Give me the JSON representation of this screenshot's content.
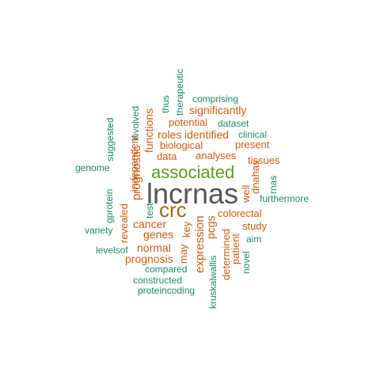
{
  "colors": {
    "gray": "#555555",
    "brown": "#9a6a1c",
    "green": "#5c9a1f",
    "orange": "#d35a12",
    "teal": "#1b8a6b"
  },
  "words": [
    "lncrnas",
    "crc",
    "associated",
    "prognostic",
    "expression",
    "pcgs",
    "cancer",
    "genes",
    "prognosis",
    "normal",
    "functions",
    "roles",
    "identified",
    "potential",
    "significantly",
    "data",
    "biological",
    "analyses",
    "present",
    "tissues",
    "well",
    "colorectal",
    "study",
    "patient",
    "determined",
    "independent",
    "revealed",
    "may",
    "key",
    "dnahas",
    "comprising",
    "dataset",
    "clinical",
    "therapeutic",
    "thus",
    "involved",
    "suggested",
    "genome",
    "gprotein",
    "test",
    "rnas",
    "furthermore",
    "aim",
    "variety",
    "levelsof",
    "compared",
    "constructed",
    "proteincoding",
    "kruskalwallis",
    "novel"
  ]
}
